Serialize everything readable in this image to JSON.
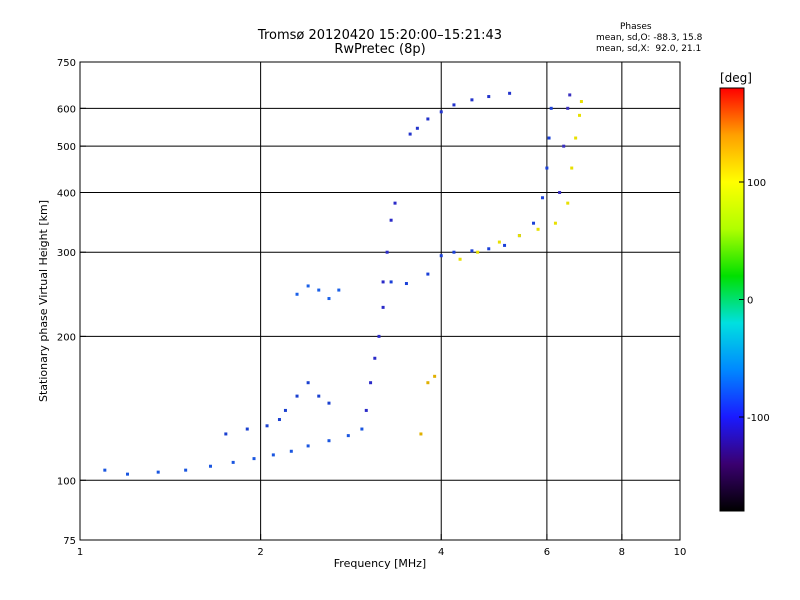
{
  "header": {
    "title": "Tromsø 20120420 15:20:00–15:21:43",
    "subtitle": "RwPretec (8p)",
    "phases_title": "Phases",
    "phases_o": "mean, sd,O: -88.3, 15.8",
    "phases_x": "mean, sd,X:  92.0, 21.1"
  },
  "chart_data": {
    "type": "scatter",
    "xlabel": "Frequency [MHz]",
    "ylabel": "Stationary phase Virtual Height [km]",
    "x_scale": "log",
    "y_scale": "log",
    "xlim": [
      1,
      10
    ],
    "ylim": [
      75,
      750
    ],
    "x_ticks": [
      1,
      2,
      4,
      6,
      8,
      10
    ],
    "x_tick_labels": [
      "1",
      "2",
      "4",
      "6",
      "8",
      "10"
    ],
    "x_gridlines": [
      2,
      4,
      6,
      8
    ],
    "y_ticks": [
      75,
      100,
      200,
      300,
      400,
      500,
      600,
      750
    ],
    "y_tick_labels": [
      "75",
      "100",
      "200",
      "300",
      "400",
      "500",
      "600",
      "750"
    ],
    "y_gridlines": [
      100,
      200,
      300,
      400,
      500,
      600
    ],
    "grid": true,
    "colorbar": {
      "label": "[deg]",
      "range": [
        -180,
        180
      ],
      "ticks": [
        100,
        0,
        -100
      ],
      "tick_labels": [
        "100",
        "0",
        "-100"
      ],
      "colors": [
        "#000000",
        "#3a0070",
        "#1a1aff",
        "#0088ff",
        "#00e0e0",
        "#00e000",
        "#b0ff00",
        "#ffff00",
        "#ffa000",
        "#ff0000"
      ]
    },
    "series": [
      {
        "color": "#1a56e0",
        "points": [
          [
            1.1,
            105
          ],
          [
            1.2,
            103
          ],
          [
            1.35,
            104
          ],
          [
            1.5,
            105
          ],
          [
            1.65,
            107
          ],
          [
            1.8,
            109
          ],
          [
            1.95,
            111
          ],
          [
            2.1,
            113
          ],
          [
            2.25,
            115
          ],
          [
            2.4,
            118
          ],
          [
            2.6,
            121
          ],
          [
            2.8,
            124
          ],
          [
            2.95,
            128
          ]
        ]
      },
      {
        "color": "#1a40d0",
        "points": [
          [
            1.75,
            125
          ],
          [
            1.9,
            128
          ],
          [
            2.05,
            130
          ],
          [
            2.15,
            134
          ],
          [
            2.2,
            140
          ],
          [
            2.3,
            150
          ],
          [
            2.4,
            160
          ],
          [
            2.5,
            150
          ],
          [
            2.6,
            145
          ]
        ]
      },
      {
        "color": "#1a60e8",
        "points": [
          [
            2.3,
            245
          ],
          [
            2.4,
            255
          ],
          [
            2.5,
            250
          ],
          [
            2.6,
            240
          ],
          [
            2.7,
            250
          ]
        ]
      },
      {
        "color": "#2a2ac8",
        "points": [
          [
            3.0,
            140
          ],
          [
            3.05,
            160
          ],
          [
            3.1,
            180
          ],
          [
            3.15,
            200
          ],
          [
            3.2,
            230
          ],
          [
            3.2,
            260
          ],
          [
            3.25,
            300
          ],
          [
            3.3,
            350
          ],
          [
            3.35,
            380
          ]
        ]
      },
      {
        "color": "#1a40d8",
        "points": [
          [
            3.3,
            260
          ],
          [
            3.5,
            258
          ],
          [
            3.8,
            270
          ],
          [
            4.0,
            295
          ],
          [
            4.2,
            300
          ],
          [
            4.5,
            302
          ],
          [
            4.8,
            305
          ],
          [
            5.1,
            310
          ],
          [
            5.4,
            325
          ],
          [
            5.7,
            345
          ],
          [
            5.9,
            390
          ],
          [
            6.0,
            450
          ],
          [
            6.05,
            520
          ],
          [
            6.1,
            600
          ]
        ]
      },
      {
        "color": "#2233cc",
        "points": [
          [
            3.55,
            530
          ],
          [
            3.65,
            545
          ],
          [
            3.8,
            570
          ],
          [
            4.0,
            590
          ],
          [
            4.2,
            610
          ],
          [
            4.5,
            625
          ],
          [
            4.8,
            635
          ],
          [
            5.2,
            645
          ]
        ]
      },
      {
        "color": "#e8e000",
        "points": [
          [
            4.3,
            290
          ],
          [
            4.6,
            300
          ],
          [
            5.0,
            315
          ],
          [
            5.4,
            325
          ],
          [
            5.8,
            335
          ],
          [
            6.2,
            345
          ],
          [
            6.5,
            380
          ],
          [
            6.6,
            450
          ],
          [
            6.7,
            520
          ],
          [
            6.8,
            580
          ],
          [
            6.85,
            620
          ]
        ]
      },
      {
        "color": "#3a30c0",
        "points": [
          [
            6.3,
            400
          ],
          [
            6.4,
            500
          ],
          [
            6.5,
            600
          ],
          [
            6.55,
            640
          ]
        ]
      },
      {
        "color": "#e0b000",
        "points": [
          [
            3.7,
            125
          ],
          [
            3.8,
            160
          ],
          [
            3.9,
            165
          ]
        ]
      }
    ]
  }
}
